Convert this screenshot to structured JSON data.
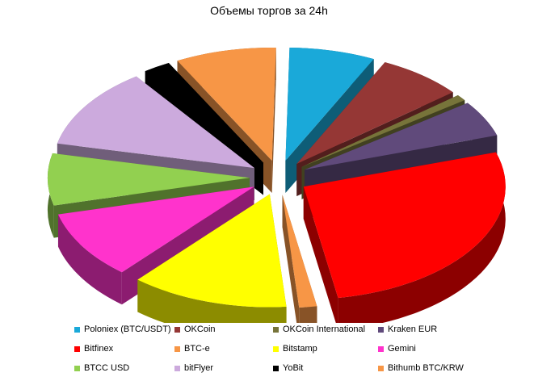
{
  "chart_data": {
    "type": "pie",
    "title": "Объемы торгов за 24h",
    "legend_position": "bottom",
    "exploded": true,
    "three_d": true,
    "slices": [
      {
        "name": "Poloniex (BTC/USDT)",
        "value": 6.3,
        "color": "#1aa9d9"
      },
      {
        "name": "OKCoin",
        "value": 6.3,
        "color": "#953735"
      },
      {
        "name": "OKCoin  International",
        "value": 0.8,
        "color": "#77743a"
      },
      {
        "name": "Kraken  EUR",
        "value": 4.7,
        "color": "#604a7b"
      },
      {
        "name": "Bitfinex",
        "value": 24.9,
        "color": "#ff0000"
      },
      {
        "name": "BTC-e",
        "value": 1.3,
        "color": "#f79646"
      },
      {
        "name": "Bitstamp",
        "value": 11.6,
        "color": "#ffff00"
      },
      {
        "name": "Gemini",
        "value": 8.9,
        "color": "#ff33cc"
      },
      {
        "name": "BTCC  USD",
        "value": 6.8,
        "color": "#92d050"
      },
      {
        "name": "bitFlyer",
        "value": 10.6,
        "color": "#ccaadd"
      },
      {
        "name": "YoBit",
        "value": 2.0,
        "color": "#000000"
      },
      {
        "name": "Bithumb BTC/KRW",
        "value": 7.4,
        "color": "#f79646"
      }
    ]
  }
}
